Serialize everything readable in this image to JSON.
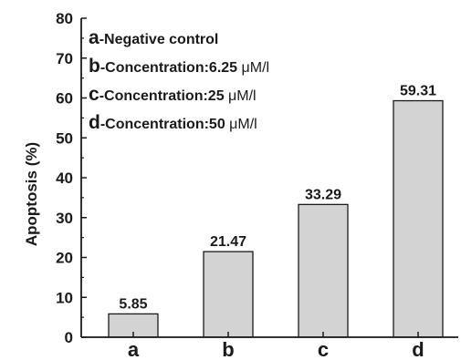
{
  "chart_data": {
    "type": "bar",
    "categories": [
      "a",
      "b",
      "c",
      "d"
    ],
    "values": [
      5.85,
      21.47,
      33.29,
      59.31
    ],
    "data_labels": [
      "5.85",
      "21.47",
      "33.29",
      "59.31"
    ],
    "title": "",
    "xlabel": "",
    "ylabel": "Apoptosis (%)",
    "ylim": [
      0,
      80
    ],
    "yticks": [
      0,
      10,
      20,
      30,
      40,
      50,
      60,
      70,
      80
    ],
    "grid": false,
    "legend_position": "top-left",
    "bar_color": "#d3d3d3",
    "legend": [
      {
        "key": "a",
        "text": "-Negative control",
        "unit": ""
      },
      {
        "key": "b",
        "text": "-Concentration:6.25 ",
        "unit": "μM/l"
      },
      {
        "key": "c",
        "text": "-Concentration:25 ",
        "unit": "μM/l"
      },
      {
        "key": "d",
        "text": "-Concentration:50 ",
        "unit": "μM/l"
      }
    ]
  }
}
